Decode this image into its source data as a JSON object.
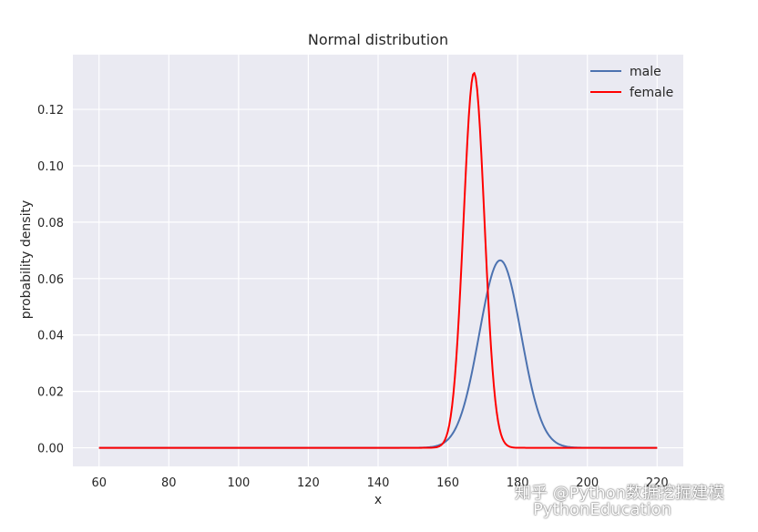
{
  "chart_data": {
    "type": "line",
    "title": "Normal distribution",
    "xlabel": "x",
    "ylabel": "probability density",
    "xlim": [
      52.5,
      227.5
    ],
    "ylim": [
      -0.0066,
      0.1394
    ],
    "xticks": [
      60,
      80,
      100,
      120,
      140,
      160,
      180,
      200,
      220
    ],
    "xtick_labels": [
      "60",
      "80",
      "100",
      "120",
      "140",
      "160",
      "180",
      "200",
      "220"
    ],
    "yticks": [
      0.0,
      0.02,
      0.04,
      0.06,
      0.08,
      0.1,
      0.12
    ],
    "ytick_labels": [
      "0.00",
      "0.02",
      "0.04",
      "0.06",
      "0.08",
      "0.10",
      "0.12"
    ],
    "grid": true,
    "legend_position": "top-right",
    "series": [
      {
        "name": "male",
        "color": "#4C72B0",
        "distribution": "normal",
        "mean": 175,
        "std": 6.0,
        "x_range": [
          60,
          220
        ]
      },
      {
        "name": "female",
        "color": "#FF0000",
        "distribution": "normal",
        "mean": 167.5,
        "std": 3.0,
        "x_range": [
          60,
          220
        ]
      }
    ]
  },
  "watermark": {
    "line1": "知乎 @Python数据挖掘建模",
    "line2": "PythonEducation"
  }
}
